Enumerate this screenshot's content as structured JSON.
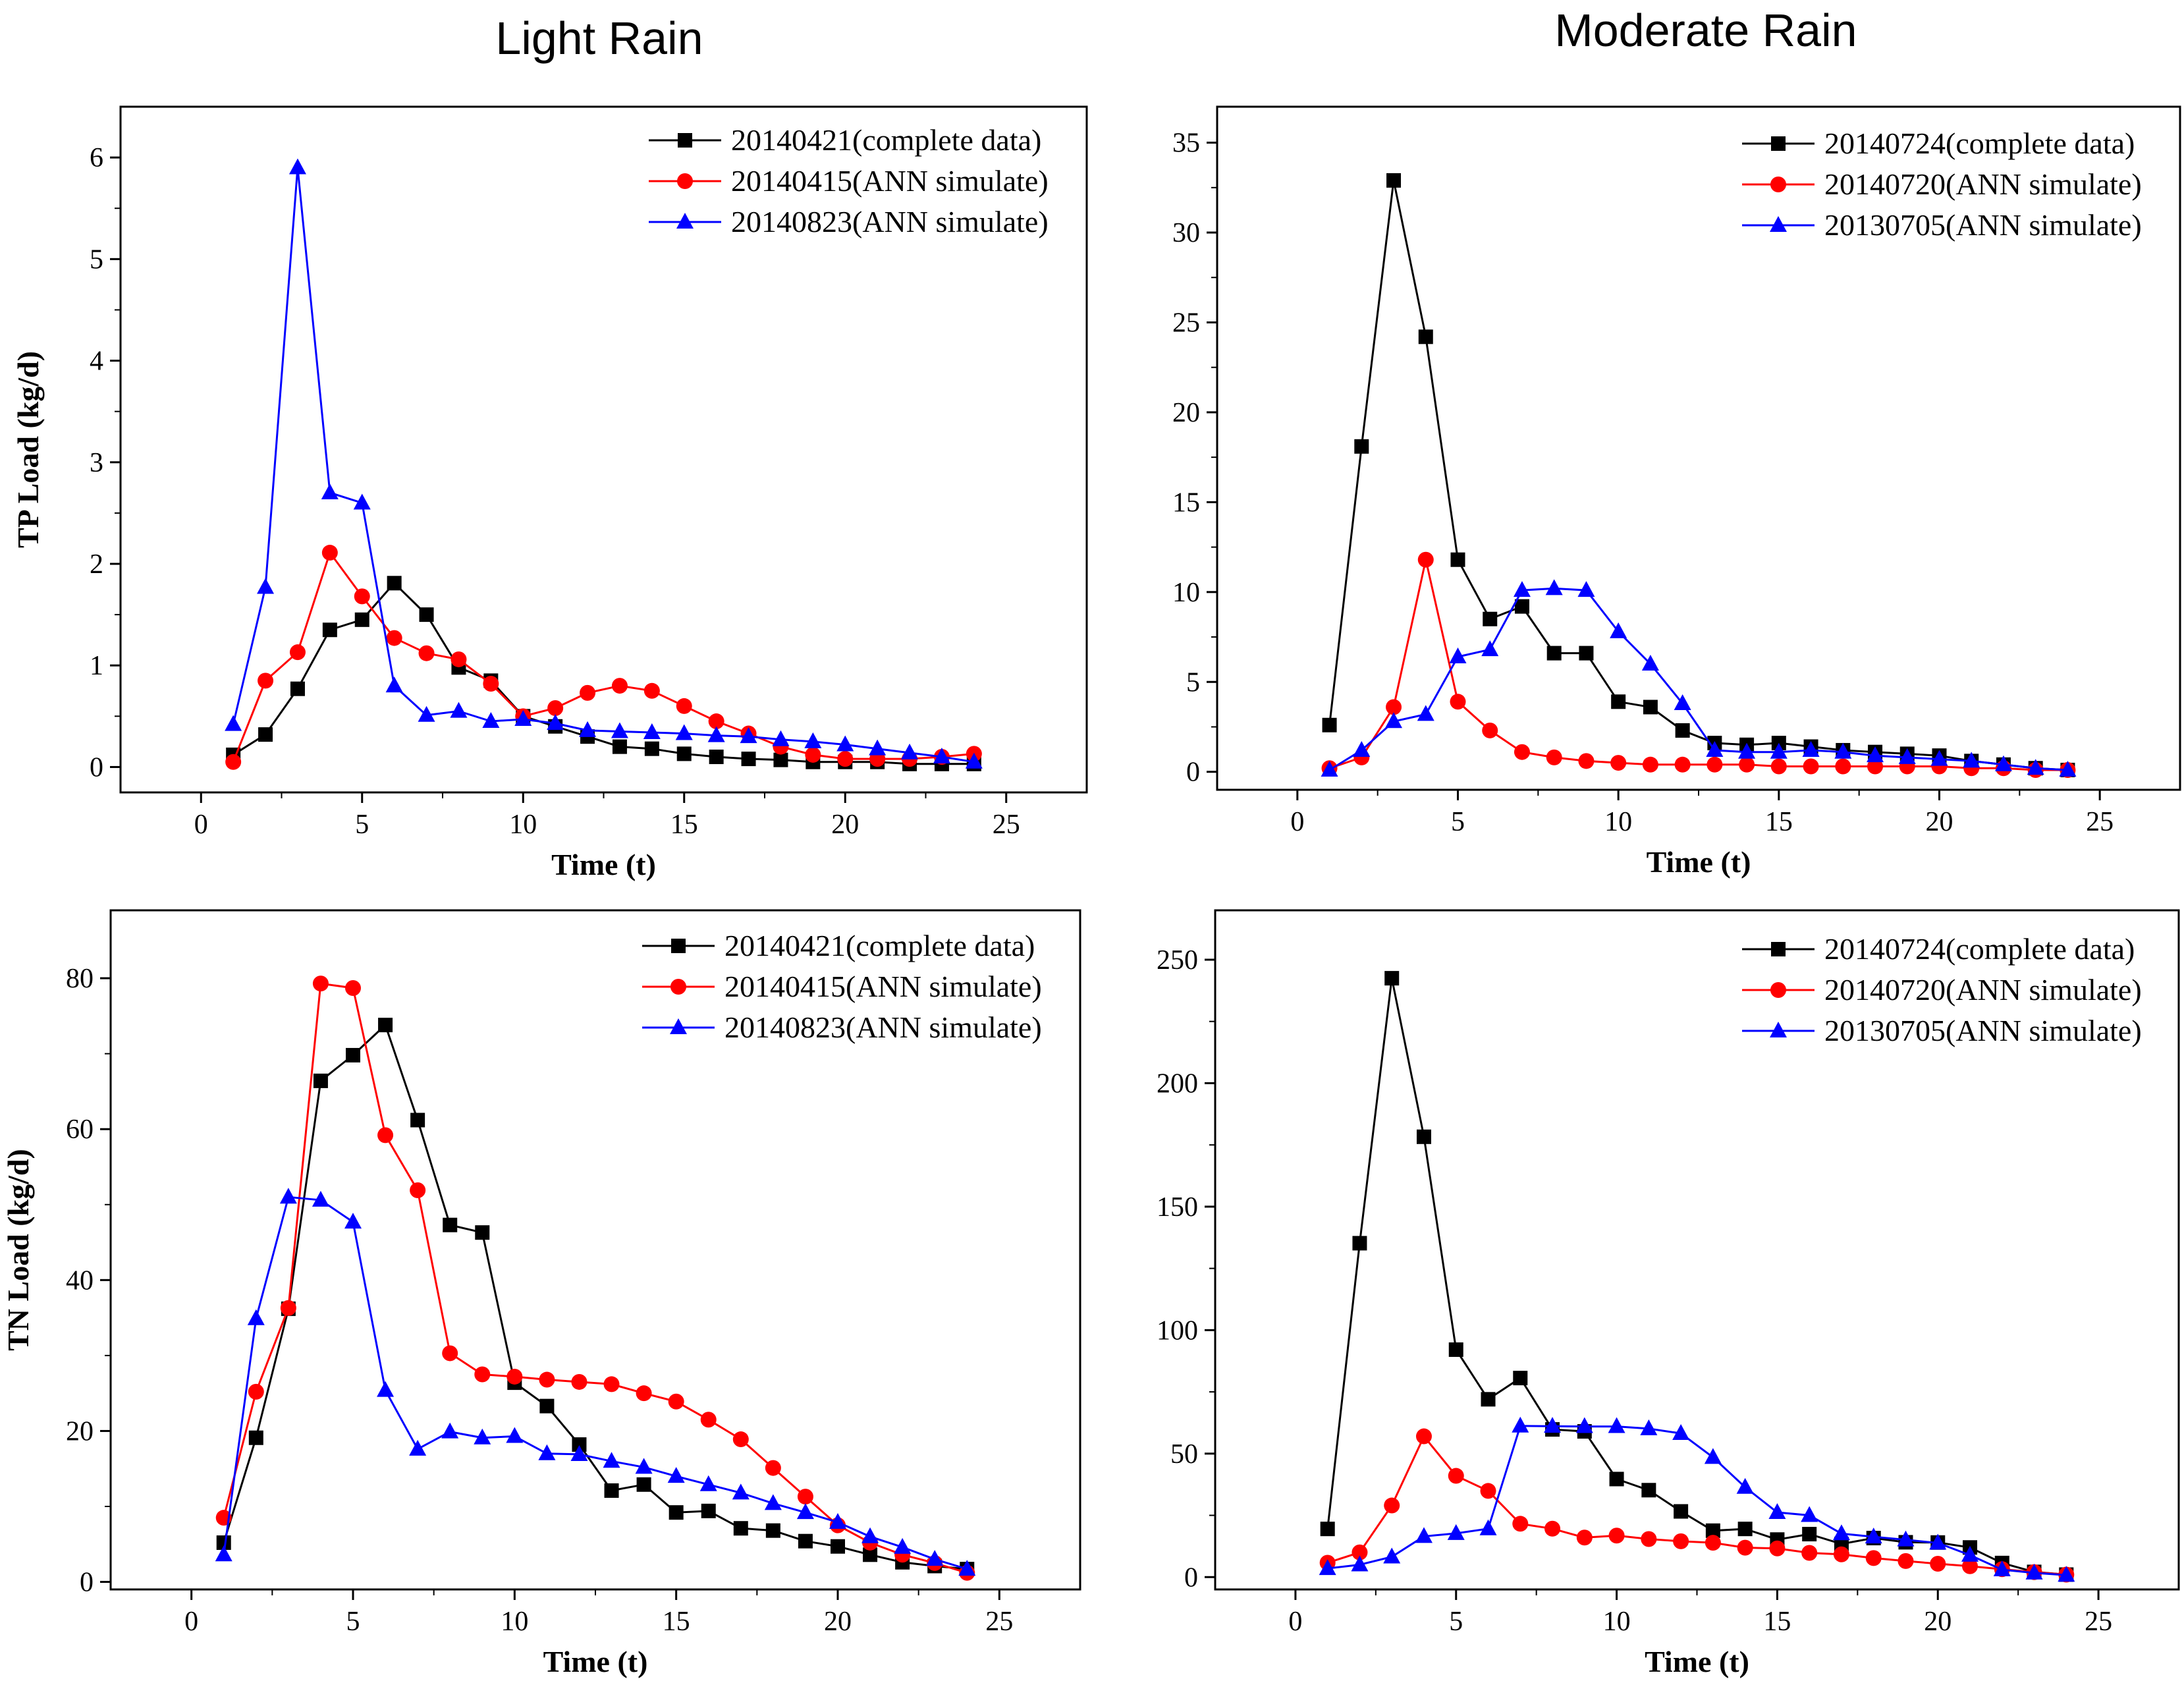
{
  "column_titles": [
    "Light Rain",
    "Moderate Rain"
  ],
  "chart_data": [
    {
      "type": "line",
      "title": "",
      "xlabel": "Time (t)",
      "ylabel": "TP Load (kg/d)",
      "xlim": [
        -2.5,
        27.5
      ],
      "ylim": [
        -0.25,
        6.5
      ],
      "xticks": [
        0,
        5,
        10,
        15,
        20,
        25
      ],
      "yticks": [
        0,
        1,
        2,
        3,
        4,
        5,
        6
      ],
      "legend_position": "top-right",
      "x": [
        1,
        2,
        3,
        4,
        5,
        6,
        7,
        8,
        9,
        10,
        11,
        12,
        13,
        14,
        15,
        16,
        17,
        18,
        19,
        20,
        21,
        22,
        23,
        24
      ],
      "series": [
        {
          "name": "20140421(complete data)",
          "color": "#000000",
          "marker": "square",
          "values": [
            0.12,
            0.32,
            0.77,
            1.35,
            1.45,
            1.81,
            1.5,
            0.98,
            0.85,
            0.5,
            0.4,
            0.3,
            0.2,
            0.18,
            0.13,
            0.1,
            0.08,
            0.07,
            0.05,
            0.05,
            0.05,
            0.03,
            0.03,
            0.03
          ]
        },
        {
          "name": "20140415(ANN simulate)",
          "color": "#ff0000",
          "marker": "circle",
          "values": [
            0.05,
            0.85,
            1.13,
            2.11,
            1.68,
            1.27,
            1.12,
            1.06,
            0.82,
            0.5,
            0.58,
            0.73,
            0.8,
            0.75,
            0.6,
            0.45,
            0.33,
            0.2,
            0.12,
            0.08,
            0.08,
            0.08,
            0.1,
            0.13
          ]
        },
        {
          "name": "20140823(ANN simulate)",
          "color": "#0000ff",
          "marker": "triangle",
          "values": [
            0.42,
            1.77,
            5.9,
            2.7,
            2.6,
            0.8,
            0.51,
            0.55,
            0.45,
            0.47,
            0.43,
            0.36,
            0.35,
            0.34,
            0.33,
            0.31,
            0.3,
            0.27,
            0.25,
            0.22,
            0.18,
            0.14,
            0.1,
            0.05
          ]
        }
      ]
    },
    {
      "type": "line",
      "title": "",
      "xlabel": "Time (t)",
      "ylabel": "",
      "xlim": [
        -2.5,
        27.5
      ],
      "ylim": [
        -1,
        37
      ],
      "xticks": [
        0,
        5,
        10,
        15,
        20,
        25
      ],
      "yticks": [
        0,
        5,
        10,
        15,
        20,
        25,
        30,
        35
      ],
      "legend_position": "top-right",
      "x": [
        1,
        2,
        3,
        4,
        5,
        6,
        7,
        8,
        9,
        10,
        11,
        12,
        13,
        14,
        15,
        16,
        17,
        18,
        19,
        20,
        21,
        22,
        23,
        24
      ],
      "series": [
        {
          "name": "20140724(complete data)",
          "color": "#000000",
          "marker": "square",
          "values": [
            2.6,
            18.1,
            32.9,
            24.2,
            11.8,
            8.5,
            9.2,
            6.6,
            6.6,
            3.9,
            3.6,
            2.3,
            1.6,
            1.5,
            1.6,
            1.4,
            1.2,
            1.1,
            1.0,
            0.9,
            0.6,
            0.4,
            0.2,
            0.1
          ]
        },
        {
          "name": "20140720(ANN simulate)",
          "color": "#ff0000",
          "marker": "circle",
          "values": [
            0.2,
            0.8,
            3.6,
            11.8,
            3.9,
            2.3,
            1.1,
            0.8,
            0.6,
            0.5,
            0.4,
            0.4,
            0.4,
            0.4,
            0.3,
            0.3,
            0.3,
            0.3,
            0.3,
            0.3,
            0.2,
            0.2,
            0.1,
            0.1
          ]
        },
        {
          "name": "20130705(ANN simulate)",
          "color": "#0000ff",
          "marker": "triangle",
          "values": [
            0.1,
            1.2,
            2.8,
            3.2,
            6.4,
            6.8,
            10.1,
            10.2,
            10.1,
            7.8,
            6.0,
            3.8,
            1.2,
            1.1,
            1.1,
            1.2,
            1.1,
            0.9,
            0.8,
            0.7,
            0.6,
            0.4,
            0.2,
            0.1
          ]
        }
      ]
    },
    {
      "type": "line",
      "title": "",
      "xlabel": "Time (t)",
      "ylabel": "TN Load (kg/d)",
      "xlim": [
        -2.5,
        27.5
      ],
      "ylim": [
        -1,
        89
      ],
      "xticks": [
        0,
        5,
        10,
        15,
        20,
        25
      ],
      "yticks": [
        0,
        20,
        40,
        60,
        80
      ],
      "legend_position": "top-right",
      "x": [
        1,
        2,
        3,
        4,
        5,
        6,
        7,
        8,
        9,
        10,
        11,
        12,
        13,
        14,
        15,
        16,
        17,
        18,
        19,
        20,
        21,
        22,
        23,
        24
      ],
      "series": [
        {
          "name": "20140421(complete data)",
          "color": "#000000",
          "marker": "square",
          "values": [
            5.2,
            19.1,
            36.2,
            66.4,
            69.8,
            73.8,
            61.2,
            47.3,
            46.3,
            26.4,
            23.3,
            18.2,
            12.1,
            12.9,
            9.2,
            9.4,
            7.1,
            6.8,
            5.4,
            4.7,
            3.6,
            2.6,
            2.1,
            1.7
          ]
        },
        {
          "name": "20140415(ANN simulate)",
          "color": "#ff0000",
          "marker": "circle",
          "values": [
            8.5,
            25.2,
            36.3,
            79.3,
            78.7,
            59.2,
            51.9,
            30.3,
            27.5,
            27.2,
            26.8,
            26.5,
            26.2,
            25.0,
            23.9,
            21.5,
            18.9,
            15.1,
            11.3,
            7.5,
            5.2,
            3.6,
            2.5,
            1.2
          ]
        },
        {
          "name": "20140823(ANN simulate)",
          "color": "#0000ff",
          "marker": "triangle",
          "values": [
            3.6,
            34.9,
            51.0,
            50.6,
            47.7,
            25.4,
            17.6,
            19.9,
            19.1,
            19.3,
            17.0,
            16.9,
            16.0,
            15.2,
            14.0,
            12.9,
            11.8,
            10.4,
            9.2,
            7.9,
            6.0,
            4.6,
            3.0,
            1.7
          ]
        }
      ]
    },
    {
      "type": "line",
      "title": "",
      "xlabel": "Time (t)",
      "ylabel": "",
      "xlim": [
        -2.5,
        27.5
      ],
      "ylim": [
        -5,
        270
      ],
      "xticks": [
        0,
        5,
        10,
        15,
        20,
        25
      ],
      "yticks": [
        0,
        50,
        100,
        150,
        200,
        250
      ],
      "legend_position": "top-right",
      "x": [
        1,
        2,
        3,
        4,
        5,
        6,
        7,
        8,
        9,
        10,
        11,
        12,
        13,
        14,
        15,
        16,
        17,
        18,
        19,
        20,
        21,
        22,
        23,
        24
      ],
      "series": [
        {
          "name": "20140724(complete data)",
          "color": "#000000",
          "marker": "square",
          "values": [
            19.5,
            135.2,
            242.5,
            178.3,
            92.1,
            72.0,
            80.6,
            59.8,
            59.0,
            39.7,
            35.2,
            26.6,
            18.8,
            19.5,
            15.2,
            17.4,
            13.4,
            15.8,
            14.1,
            14.0,
            12.0,
            5.7,
            2.1,
            1.0
          ]
        },
        {
          "name": "20140720(ANN simulate)",
          "color": "#ff0000",
          "marker": "circle",
          "values": [
            5.8,
            10.0,
            29.0,
            57.0,
            41.0,
            34.9,
            21.6,
            19.6,
            16.0,
            16.8,
            15.4,
            14.5,
            13.9,
            11.9,
            11.6,
            9.8,
            9.2,
            7.7,
            6.5,
            5.4,
            4.4,
            3.2,
            2.0,
            1.0
          ]
        },
        {
          "name": "20130705(ANN simulate)",
          "color": "#0000ff",
          "marker": "triangle",
          "values": [
            3.5,
            5.0,
            8.2,
            16.5,
            17.7,
            19.6,
            61.2,
            61.1,
            61.0,
            61.0,
            60.1,
            58.2,
            48.5,
            36.4,
            26.2,
            25.0,
            17.6,
            16.3,
            15.1,
            13.8,
            8.9,
            3.0,
            1.7,
            0.8
          ]
        }
      ]
    }
  ]
}
